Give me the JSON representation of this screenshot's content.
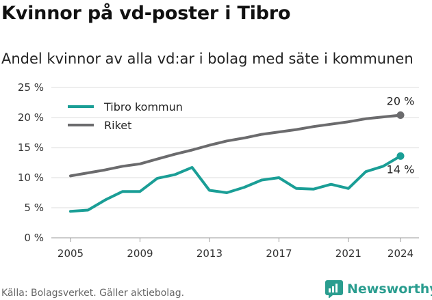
{
  "title": "Kvinnor på vd-poster i Tibro",
  "subtitle": "Andel kvinnor av alla vd:ar i bolag med säte i kommunen",
  "source": "Källa: Bolagsverket. Gäller aktiebolag.",
  "brand": "Newsworthy",
  "chart_data": {
    "type": "line",
    "x": [
      2005,
      2006,
      2007,
      2008,
      2009,
      2010,
      2011,
      2012,
      2013,
      2014,
      2015,
      2016,
      2017,
      2018,
      2019,
      2020,
      2021,
      2022,
      2023,
      2024
    ],
    "series": [
      {
        "name": "Tibro kommun",
        "color": "#1a9e96",
        "values": [
          4.4,
          4.6,
          6.3,
          7.7,
          7.7,
          9.9,
          10.5,
          11.7,
          7.9,
          7.5,
          8.4,
          9.6,
          10.0,
          8.2,
          8.1,
          8.9,
          8.2,
          11.0,
          11.9,
          13.6
        ]
      },
      {
        "name": "Riket",
        "color": "#6b6b6d",
        "values": [
          10.3,
          10.8,
          11.3,
          11.9,
          12.3,
          13.1,
          13.9,
          14.6,
          15.4,
          16.1,
          16.6,
          17.2,
          17.6,
          18.0,
          18.5,
          18.9,
          19.3,
          19.8,
          20.1,
          20.4
        ]
      }
    ],
    "end_labels": [
      "14 %",
      "20 %"
    ],
    "y_ticks": [
      "0 %",
      "5 %",
      "10 %",
      "15 %",
      "20 %",
      "25 %"
    ],
    "x_ticks": [
      "2005",
      "2009",
      "2013",
      "2017",
      "2021",
      "2024"
    ],
    "ylim": [
      0,
      25
    ],
    "grid": "horizontal",
    "legend": "top-left"
  }
}
